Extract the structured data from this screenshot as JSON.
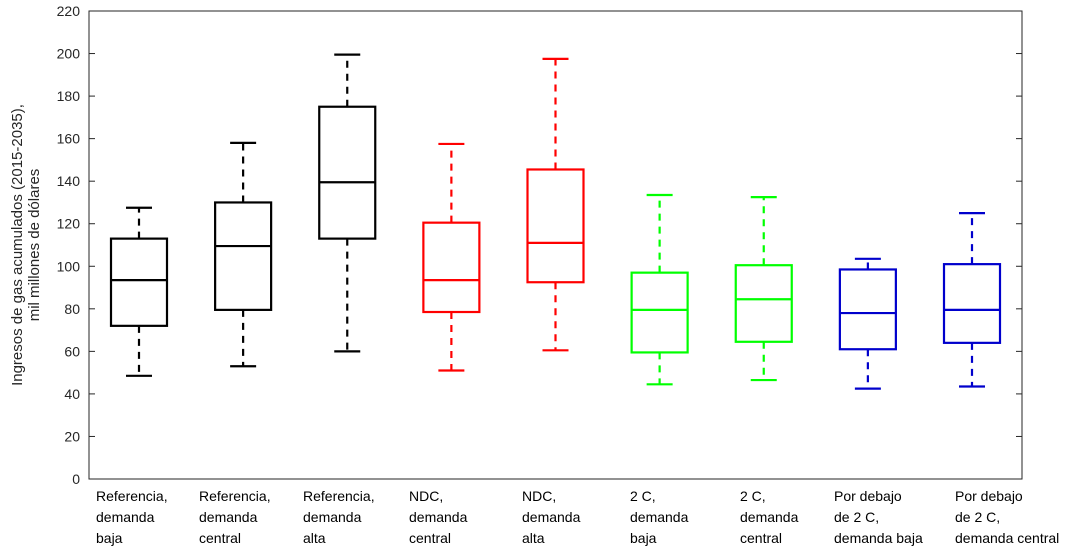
{
  "chart_data": {
    "type": "box",
    "ylabel": "Ingresos de gas acumulados (2015-2035),\nmil millones de dólares",
    "ylim": [
      0,
      220
    ],
    "yticks": [
      0,
      20,
      40,
      60,
      80,
      100,
      120,
      140,
      160,
      180,
      200,
      220
    ],
    "grid": false,
    "categories": [
      "Referencia,\ndemanda\nbaja",
      "Referencia,\ndemanda\ncentral",
      "Referencia,\ndemanda\nalta",
      "NDC,\ndemanda\ncentral",
      "NDC,\ndemanda\nalta",
      "2 C,\ndemanda\nbaja",
      "2 C,\ndemanda\ncentral",
      "Por debajo\nde 2 C,\ndemanda baja",
      "Por debajo\nde 2 C,\ndemanda central"
    ],
    "boxes": [
      {
        "min": 48.5,
        "q1": 72,
        "median": 93.5,
        "q3": 113,
        "max": 127.5,
        "color": "#000000"
      },
      {
        "min": 53,
        "q1": 79.5,
        "median": 109.5,
        "q3": 130,
        "max": 158,
        "color": "#000000"
      },
      {
        "min": 60,
        "q1": 113,
        "median": 139.5,
        "q3": 175,
        "max": 199.5,
        "color": "#000000"
      },
      {
        "min": 51,
        "q1": 78.5,
        "median": 93.5,
        "q3": 120.5,
        "max": 157.5,
        "color": "#ff0000"
      },
      {
        "min": 60.5,
        "q1": 92.5,
        "median": 111,
        "q3": 145.5,
        "max": 197.5,
        "color": "#ff0000"
      },
      {
        "min": 44.5,
        "q1": 59.5,
        "median": 79.5,
        "q3": 97,
        "max": 133.5,
        "color": "#00ff00"
      },
      {
        "min": 46.5,
        "q1": 64.5,
        "median": 84.5,
        "q3": 100.5,
        "max": 132.5,
        "color": "#00ff00"
      },
      {
        "min": 42.5,
        "q1": 61,
        "median": 78,
        "q3": 98.5,
        "max": 103.5,
        "color": "#0000cc"
      },
      {
        "min": 43.5,
        "q1": 64,
        "median": 79.5,
        "q3": 101,
        "max": 125,
        "color": "#0000cc"
      }
    ]
  }
}
